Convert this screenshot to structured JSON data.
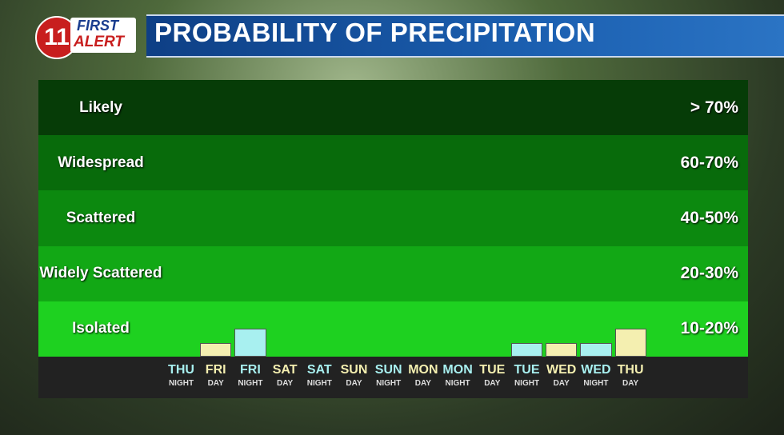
{
  "logo": {
    "number": "11",
    "line1": "FIRST",
    "line2": "ALERT"
  },
  "chart_data": {
    "type": "bar",
    "title": "PROBABILITY OF PRECIPITATION",
    "bands": [
      {
        "label": "Likely",
        "range": "> 70%",
        "color": "#063c07"
      },
      {
        "label": "Widespread",
        "range": "60-70%",
        "color": "#086b0b"
      },
      {
        "label": "Scattered",
        "range": "40-50%",
        "color": "#0c890f"
      },
      {
        "label": "Widely Scattered",
        "range": "20-30%",
        "color": "#12a815"
      },
      {
        "label": "Isolated",
        "range": "10-20%",
        "color": "#1ed120"
      }
    ],
    "categories": [
      "THU",
      "FRI",
      "FRI",
      "SAT",
      "SAT",
      "SUN",
      "SUN",
      "MON",
      "MON",
      "TUE",
      "TUE",
      "WED",
      "WED",
      "THU"
    ],
    "periods": [
      "NIGHT",
      "DAY",
      "NIGHT",
      "DAY",
      "NIGHT",
      "DAY",
      "NIGHT",
      "DAY",
      "NIGHT",
      "DAY",
      "NIGHT",
      "DAY",
      "NIGHT",
      "DAY"
    ],
    "values": [
      0,
      5,
      10,
      0,
      0,
      0,
      0,
      0,
      0,
      0,
      5,
      5,
      5,
      10
    ],
    "colors": [
      "#a8f0f0",
      "#f4efb0",
      "#a8f0f0",
      "#f4efb0",
      "#a8f0f0",
      "#f4efb0",
      "#a8f0f0",
      "#f4efb0",
      "#a8f0f0",
      "#f4efb0",
      "#a8f0f0",
      "#f4efb0",
      "#a8f0f0",
      "#f4efb0"
    ],
    "ylim": [
      0,
      100
    ]
  }
}
